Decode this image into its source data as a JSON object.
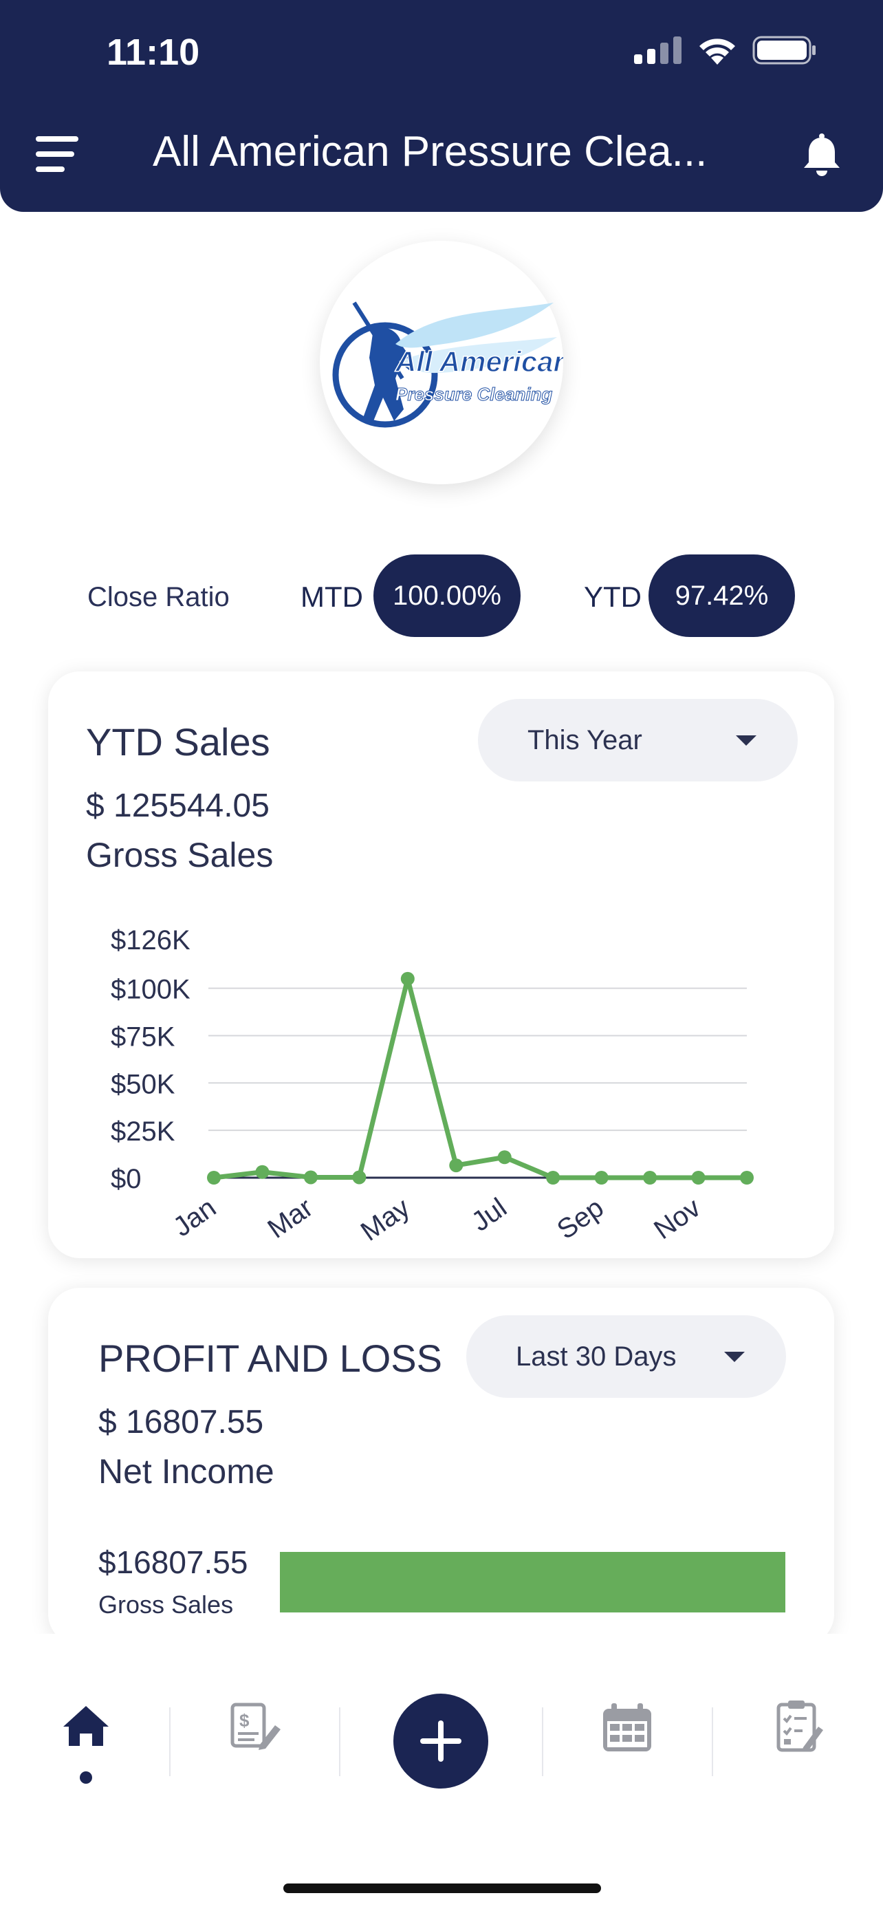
{
  "status_bar": {
    "time": "11:10"
  },
  "header": {
    "title": "All American Pressure Clea...",
    "menu_icon": "hamburger-menu-icon",
    "bell_icon": "bell-icon"
  },
  "logo": {
    "text_line1": "All American",
    "text_line2": "Pressure Cleaning"
  },
  "close_ratio": {
    "label": "Close Ratio",
    "mtd_label": "MTD",
    "mtd_value": "100.00%",
    "ytd_label": "YTD",
    "ytd_value": "97.42%"
  },
  "ytd_sales": {
    "title": "YTD Sales",
    "period": "This Year",
    "amount": "$ 125544.05",
    "subtitle": "Gross Sales"
  },
  "chart_data": {
    "type": "line",
    "color": "#62ad5a",
    "y_ticks": [
      "$126K",
      "$100K",
      "$75K",
      "$50K",
      "$25K",
      "$0"
    ],
    "x_tick_labels": [
      "Jan",
      "Mar",
      "May",
      "Jul",
      "Sep",
      "Nov"
    ],
    "categories": [
      "Jan",
      "Feb",
      "Mar",
      "Apr",
      "May",
      "Jun",
      "Jul",
      "Aug",
      "Sep",
      "Oct",
      "Nov",
      "Dec"
    ],
    "values": [
      0,
      3000,
      200,
      200,
      105000,
      6500,
      10800,
      0,
      0,
      0,
      0,
      0
    ],
    "ylim": [
      0,
      126000
    ],
    "grid": true
  },
  "pnl": {
    "title": "PROFIT AND LOSS",
    "period": "Last 30 Days",
    "amount": "$ 16807.55",
    "subtitle": "Net Income",
    "bar_value_label": "$16807.55",
    "bar_label": "Gross Sales",
    "bar_color": "#66ad5a",
    "bar_fraction": 1.0
  },
  "tab_bar": {
    "items": [
      "home-icon",
      "invoice-icon",
      "add-icon",
      "calendar-icon",
      "checklist-icon"
    ],
    "active": "home"
  }
}
